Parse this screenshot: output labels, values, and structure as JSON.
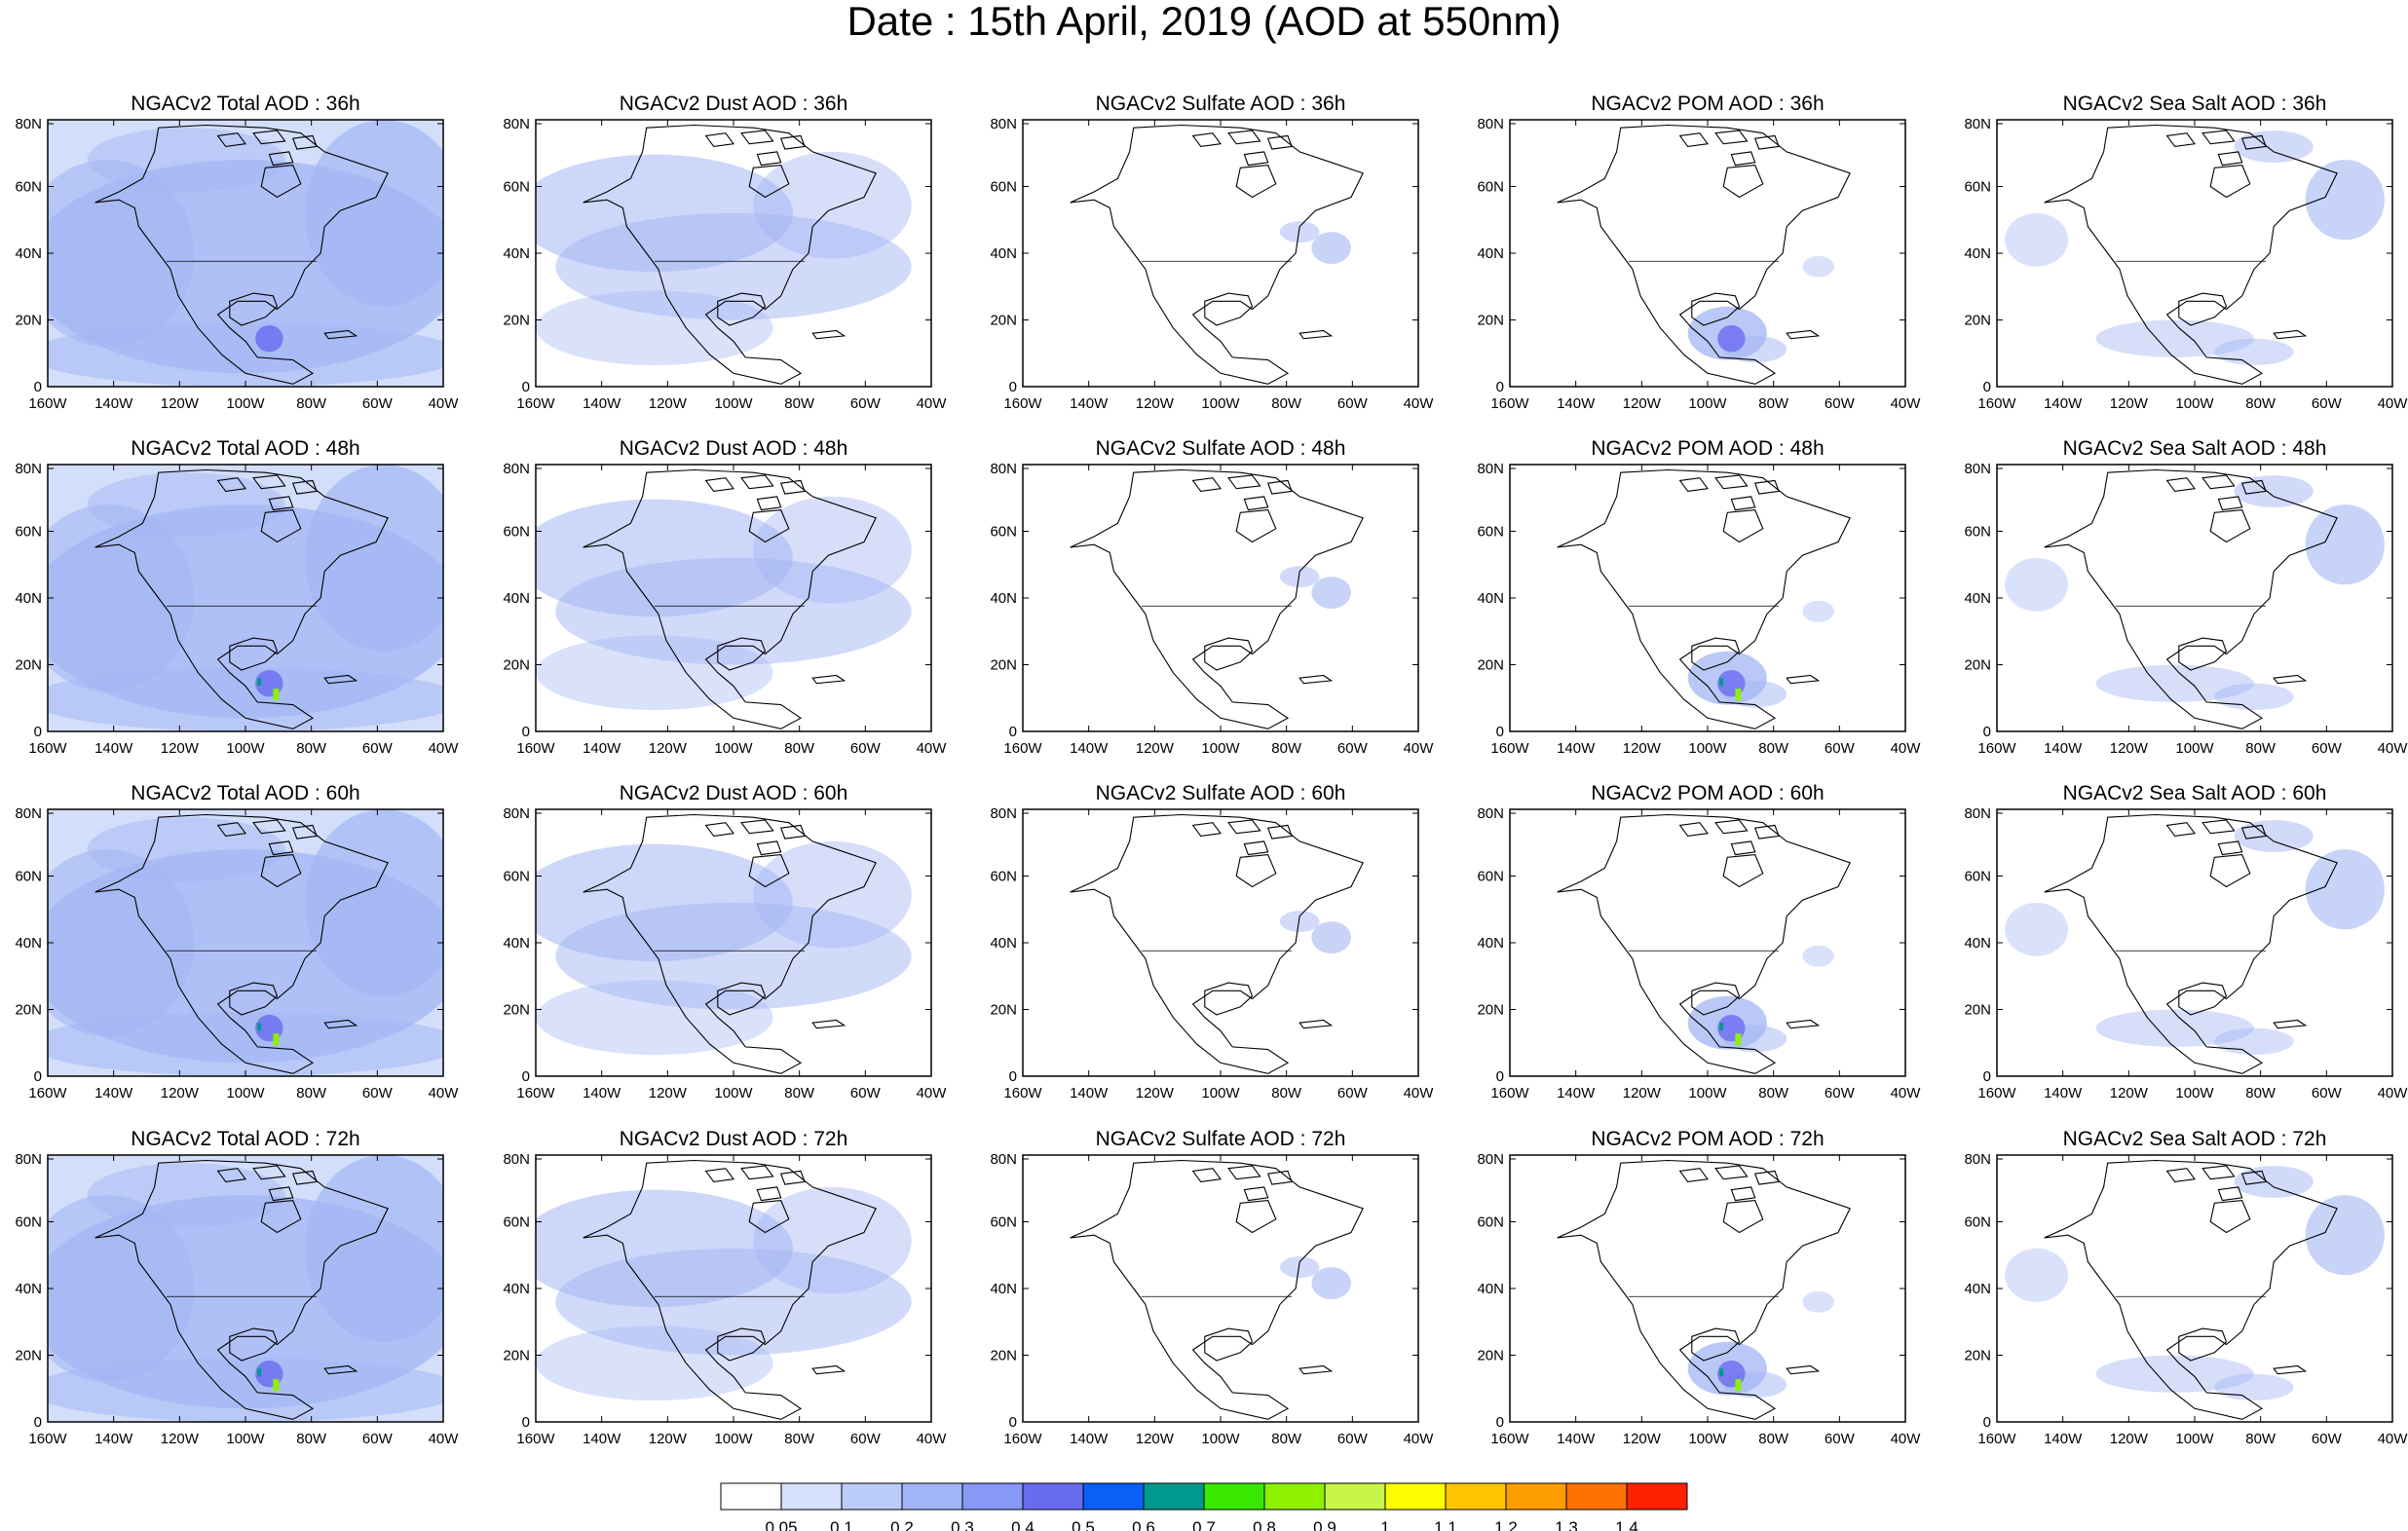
{
  "title": "Date : 15th April, 2019 (AOD at 550nm)",
  "panels": [
    [
      "NGACv2 Total AOD : 36h",
      "NGACv2 Dust AOD : 36h",
      "NGACv2 Sulfate AOD : 36h",
      "NGACv2 POM AOD : 36h",
      "NGACv2 Sea Salt AOD : 36h"
    ],
    [
      "NGACv2 Total AOD : 48h",
      "NGACv2 Dust AOD : 48h",
      "NGACv2 Sulfate AOD : 48h",
      "NGACv2 POM AOD : 48h",
      "NGACv2 Sea Salt AOD : 48h"
    ],
    [
      "NGACv2 Total AOD : 60h",
      "NGACv2 Dust AOD : 60h",
      "NGACv2 Sulfate AOD : 60h",
      "NGACv2 POM AOD : 60h",
      "NGACv2 Sea Salt AOD : 60h"
    ],
    [
      "NGACv2 Total AOD : 72h",
      "NGACv2 Dust AOD : 72h",
      "NGACv2 Sulfate AOD : 72h",
      "NGACv2 POM AOD : 72h",
      "NGACv2 Sea Salt  AOD : 72h"
    ]
  ],
  "x_ticks": [
    "160W",
    "140W",
    "120W",
    "100W",
    "80W",
    "60W",
    "40W"
  ],
  "y_ticks": [
    "80N",
    "60N",
    "40N",
    "20N",
    "0"
  ],
  "colorbar": {
    "labels": [
      "0.05",
      "0.1",
      "0.2",
      "0.3",
      "0.4",
      "0.5",
      "0.6",
      "0.7",
      "0.8",
      "0.9",
      "1",
      "1.1",
      "1.2",
      "1.3",
      "1.4"
    ],
    "colors": [
      "#ffffff",
      "#d6e1fb",
      "#bcccf9",
      "#a1b5f8",
      "#8798f6",
      "#6a6cf0",
      "#0a5ff5",
      "#00998f",
      "#39e800",
      "#8ff000",
      "#c8f648",
      "#fffd00",
      "#fec400",
      "#fe9d00",
      "#ff7100",
      "#ff2200"
    ]
  },
  "aerosol_color": "#a3b6f4"
}
